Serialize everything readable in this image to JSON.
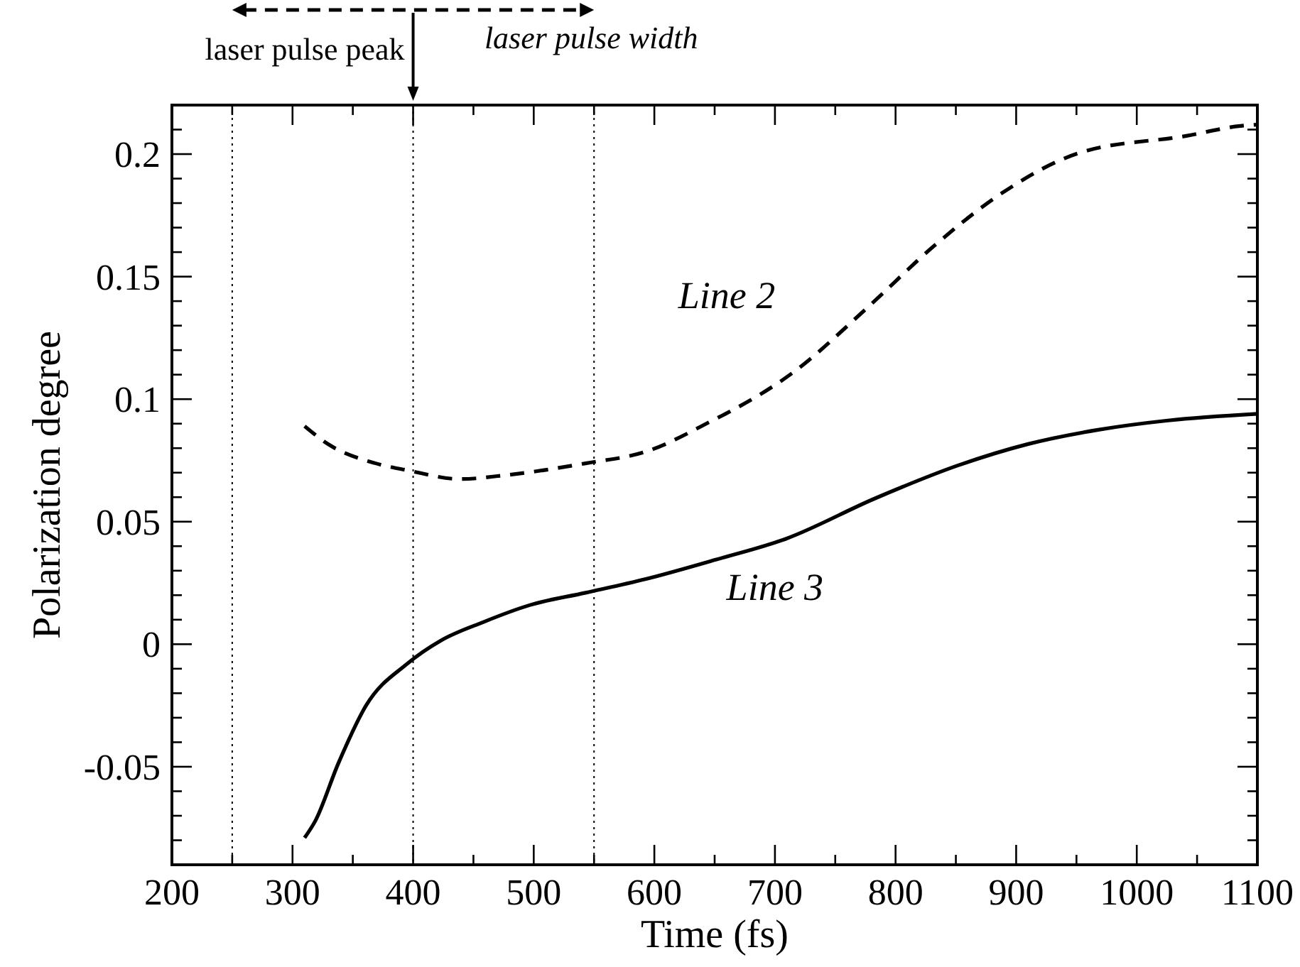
{
  "chart_data": {
    "type": "line",
    "xlabel": "Time (fs)",
    "ylabel": "Polarization degree",
    "xlim": [
      200,
      1100
    ],
    "ylim": [
      -0.09,
      0.22
    ],
    "xticks": [
      200,
      {
        "value": 250,
        "label": null
      },
      300,
      {
        "value": 350,
        "label": null
      },
      400,
      {
        "value": 450,
        "label": null
      },
      500,
      {
        "value": 550,
        "label": null
      },
      600,
      {
        "value": 650,
        "label": null
      },
      700,
      {
        "value": 750,
        "label": null
      },
      800,
      {
        "value": 850,
        "label": null
      },
      900,
      {
        "value": 950,
        "label": null
      },
      1000,
      {
        "value": 1050,
        "label": null
      },
      1100
    ],
    "yticks": [
      {
        "value": -0.08,
        "label": null
      },
      {
        "value": -0.07,
        "label": null
      },
      {
        "value": -0.06,
        "label": null
      },
      -0.05,
      {
        "value": -0.04,
        "label": null
      },
      {
        "value": -0.03,
        "label": null
      },
      {
        "value": -0.02,
        "label": null
      },
      {
        "value": -0.01,
        "label": null
      },
      0,
      {
        "value": 0.01,
        "label": null
      },
      {
        "value": 0.02,
        "label": null
      },
      {
        "value": 0.03,
        "label": null
      },
      {
        "value": 0.04,
        "label": null
      },
      0.05,
      {
        "value": 0.06,
        "label": null
      },
      {
        "value": 0.07,
        "label": null
      },
      {
        "value": 0.08,
        "label": null
      },
      {
        "value": 0.09,
        "label": null
      },
      0.1,
      {
        "value": 0.11,
        "label": null
      },
      {
        "value": 0.12,
        "label": null
      },
      {
        "value": 0.13,
        "label": null
      },
      {
        "value": 0.14,
        "label": null
      },
      0.15,
      {
        "value": 0.16,
        "label": null
      },
      {
        "value": 0.17,
        "label": null
      },
      {
        "value": 0.18,
        "label": null
      },
      {
        "value": 0.19,
        "label": null
      },
      0.2,
      {
        "value": 0.21,
        "label": null
      }
    ],
    "grid": false,
    "series": [
      {
        "name": "Line 2",
        "color": "#000000",
        "line_style": "dashed",
        "x": [
          310,
          330,
          369,
          395,
          439,
          477,
          543,
          593,
          651,
          659,
          717,
          775,
          833,
          891,
          953,
          1042,
          1086,
          1100
        ],
        "values": [
          0.089,
          0.0815,
          0.0738,
          0.071,
          0.0674,
          0.069,
          0.0738,
          0.0786,
          0.092,
          0.094,
          0.1116,
          0.1366,
          0.163,
          0.185,
          0.2006,
          0.2075,
          0.2115,
          0.212
        ]
      },
      {
        "name": "Line 3",
        "color": "#000000",
        "line_style": "solid",
        "x": [
          310,
          319,
          338,
          361,
          395,
          423,
          458,
          497,
          543,
          593,
          651,
          709,
          783,
          852,
          910,
          968,
          1026,
          1100
        ],
        "values": [
          -0.079,
          -0.072,
          -0.0486,
          -0.025,
          -0.008,
          0.0015,
          0.009,
          0.016,
          0.021,
          0.0266,
          0.0345,
          0.043,
          0.0595,
          0.073,
          0.0817,
          0.0875,
          0.0913,
          0.094
        ]
      }
    ],
    "ref_lines": [
      {
        "axis": "x",
        "value": 250,
        "line_style": "dotted"
      },
      {
        "axis": "x",
        "value": 400,
        "line_style": "dotted"
      },
      {
        "axis": "x",
        "value": 550,
        "line_style": "dotted"
      }
    ],
    "annotations": [
      "laser pulse peak",
      "laser pulse width"
    ]
  }
}
